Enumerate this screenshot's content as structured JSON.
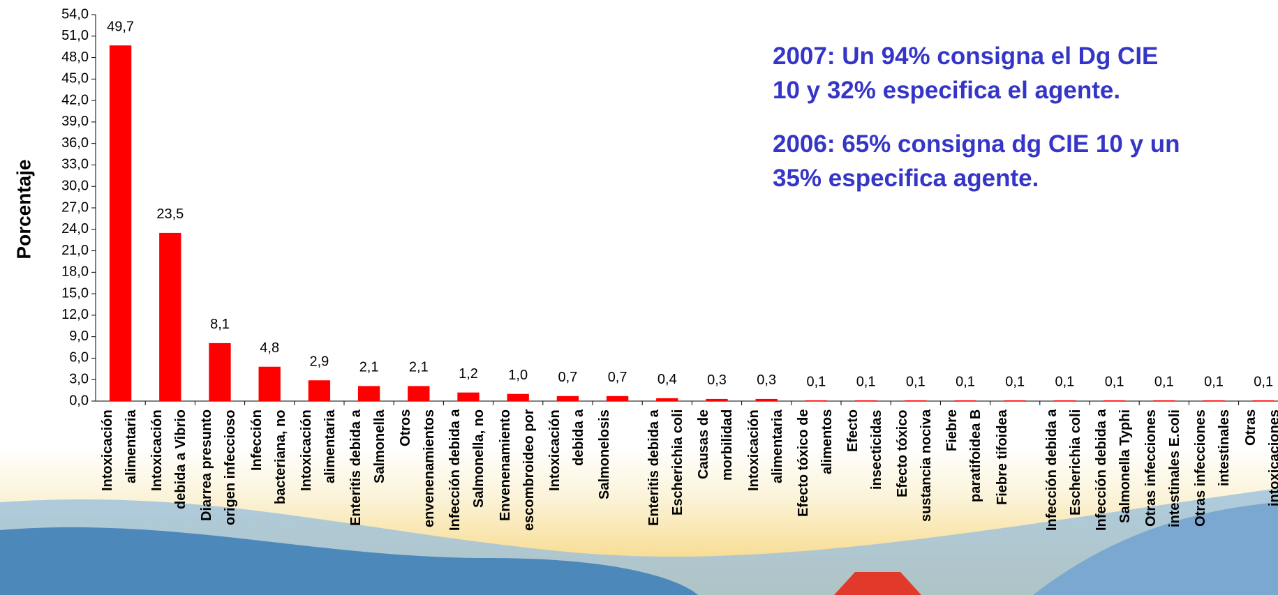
{
  "chart_data": {
    "type": "bar",
    "y_label": "Porcentaje",
    "annotations": [
      "2007: Un 94% consigna el Dg CIE\n10 y 32% especifica el agente.",
      "2006: 65% consigna dg CIE 10 y un\n35%  especifica agente."
    ],
    "categories": [
      "Intoxicación\nalimentaria",
      "Intoxicación\ndebida a Vibrio",
      "Diarrea presunto\norigen infeccioso",
      "Infección\nbacteriana, no",
      "Intoxicación\nalimentaria",
      "Enteritis debida a\nSalmonella",
      "Otros\nenvenenamientos",
      "Infección debida a\nSalmonella, no",
      "Envenenamiento\nescombroideo por",
      "Intoxicación\ndebida a",
      "Salmonelosis",
      "Enteritis debida a\nEscherichia coli",
      "Causas de\nmorbilidad",
      "Intoxicación\nalimentaria",
      "Efecto tóxico de\nalimentos",
      "Efecto\ninsecticidas",
      "Efecto tóxico\nsustancia nociva",
      "Fiebre\nparatifoidea B",
      "Fiebre tifoidea",
      "Infección debida a\nEscherichia coli",
      "Infección debida a\nSalmonella Typhi",
      "Otras infecciones\nintestinales E.coli",
      "Otras infecciones\nintestinales",
      "Otras\nintoxicaciones"
    ],
    "values": [
      49.7,
      23.5,
      8.1,
      4.8,
      2.9,
      2.1,
      2.1,
      1.2,
      1.0,
      0.7,
      0.7,
      0.4,
      0.3,
      0.3,
      0.1,
      0.1,
      0.1,
      0.1,
      0.1,
      0.1,
      0.1,
      0.1,
      0.1,
      0.1
    ],
    "value_labels": [
      "49,7",
      "23,5",
      "8,1",
      "4,8",
      "2,9",
      "2,1",
      "2,1",
      "1,2",
      "1,0",
      "0,7",
      "0,7",
      "0,4",
      "0,3",
      "0,3",
      "0,1",
      "0,1",
      "0,1",
      "0,1",
      "0,1",
      "0,1",
      "0,1",
      "0,1",
      "0,1",
      "0,1"
    ],
    "color": "#ff0000",
    "ylim": [
      0,
      54
    ],
    "yticks": [
      {
        "value": 0,
        "label": "0,0"
      },
      {
        "value": 3,
        "label": "3,0"
      },
      {
        "value": 6,
        "label": "6,0"
      },
      {
        "value": 9,
        "label": "9,0"
      },
      {
        "value": 12,
        "label": "12,0"
      },
      {
        "value": 15,
        "label": "15,0"
      },
      {
        "value": 18,
        "label": "18,0"
      },
      {
        "value": 21,
        "label": "21,0"
      },
      {
        "value": 24,
        "label": "24,0"
      },
      {
        "value": 27,
        "label": "27,0"
      },
      {
        "value": 30,
        "label": "30,0"
      },
      {
        "value": 33,
        "label": "33,0"
      },
      {
        "value": 36,
        "label": "36,0"
      },
      {
        "value": 39,
        "label": "39,0"
      },
      {
        "value": 42,
        "label": "42,0"
      },
      {
        "value": 45,
        "label": "45,0"
      },
      {
        "value": 48,
        "label": "48,0"
      },
      {
        "value": 51,
        "label": "51,0"
      },
      {
        "value": 54,
        "label": "54,0"
      }
    ],
    "grid": false
  }
}
